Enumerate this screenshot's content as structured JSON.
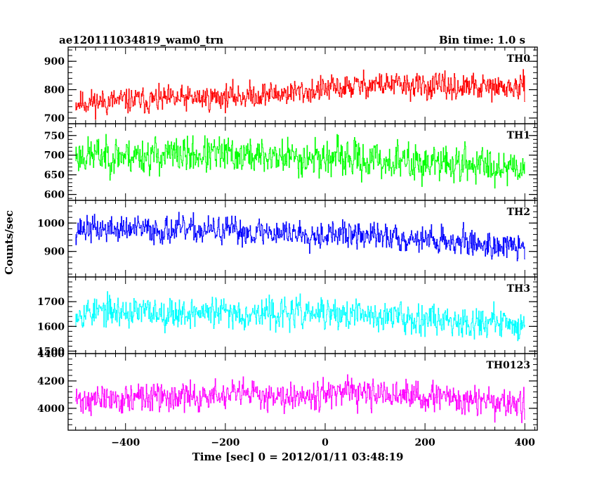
{
  "header": {
    "title": "ae120111034819_wam0_trn",
    "bin_time": "Bin time: 1.0 s"
  },
  "chart_data": {
    "type": "line",
    "xlabel": "Time [sec] 0 = 2012/01/11 03:48:19",
    "ylabel": "Counts/sec",
    "xlim": [
      -515,
      425
    ],
    "x_ticks": [
      -400,
      -200,
      0,
      200,
      400
    ],
    "x_tick_labels": [
      "−400",
      "−200",
      "0",
      "200",
      "400"
    ],
    "x_range": [
      -500,
      400
    ],
    "bin_seconds": 1.0,
    "panels": [
      {
        "name": "TH0",
        "color": "#ff0000",
        "ylim": [
          680,
          950
        ],
        "y_ticks": [
          700,
          800,
          900
        ],
        "y_tick_labels": [
          "700",
          "800",
          "900"
        ],
        "trend_points": [
          [
            -500,
            755
          ],
          [
            -300,
            765
          ],
          [
            -100,
            785
          ],
          [
            0,
            800
          ],
          [
            100,
            820
          ],
          [
            200,
            810
          ],
          [
            400,
            805
          ]
        ],
        "noise_amplitude": 32,
        "seed": 11
      },
      {
        "name": "TH1",
        "color": "#00ff00",
        "ylim": [
          585,
          780
        ],
        "y_ticks": [
          600,
          650,
          700,
          750
        ],
        "y_tick_labels": [
          "600",
          "650",
          "700",
          "750"
        ],
        "trend_points": [
          [
            -500,
            700
          ],
          [
            -200,
            700
          ],
          [
            0,
            693
          ],
          [
            200,
            680
          ],
          [
            400,
            672
          ]
        ],
        "noise_amplitude": 33,
        "seed": 23
      },
      {
        "name": "TH2",
        "color": "#0000ff",
        "ylim": [
          810,
          1080
        ],
        "y_ticks": [
          900,
          1000
        ],
        "y_tick_labels": [
          "900",
          "1000"
        ],
        "trend_points": [
          [
            -500,
            980
          ],
          [
            -200,
            972
          ],
          [
            0,
            962
          ],
          [
            200,
            945
          ],
          [
            400,
            912
          ]
        ],
        "noise_amplitude": 34,
        "seed": 37
      },
      {
        "name": "TH3",
        "color": "#00ffff",
        "ylim": [
          1490,
          1800
        ],
        "y_ticks": [
          1500,
          1600,
          1700
        ],
        "y_tick_labels": [
          "1500",
          "1600",
          "1700"
        ],
        "trend_points": [
          [
            -500,
            1660
          ],
          [
            -200,
            1655
          ],
          [
            0,
            1650
          ],
          [
            200,
            1635
          ],
          [
            400,
            1605
          ]
        ],
        "noise_amplitude": 44,
        "seed": 53
      },
      {
        "name": "TH0123",
        "color": "#ff00ff",
        "ylim": [
          3840,
          4400
        ],
        "y_ticks": [
          4000,
          4200,
          4400
        ],
        "y_tick_labels": [
          "4000",
          "4200",
          "4400"
        ],
        "trend_points": [
          [
            -500,
            4060
          ],
          [
            -200,
            4090
          ],
          [
            0,
            4110
          ],
          [
            200,
            4085
          ],
          [
            400,
            4020
          ]
        ],
        "noise_amplitude": 75,
        "seed": 71
      }
    ]
  }
}
